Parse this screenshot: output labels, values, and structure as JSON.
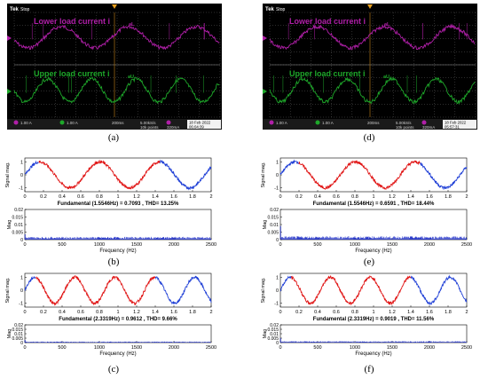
{
  "colors": {
    "scope_bg": "#000000",
    "scope_grid": "#5a5a5a",
    "lower_trace": "#b01fa8",
    "upper_trace": "#1ea82a",
    "status_bar": "#1a1a1a",
    "fft_red": "#e01414",
    "fft_blue": "#1f3fd6",
    "spectrum": "#1f2fc8"
  },
  "scopes": [
    {
      "caption": "(a)",
      "brand": "Tek",
      "state": "Stop",
      "lower_label": "Lower load current i",
      "lower_sub": "aL",
      "upper_label": "Upper load current i",
      "upper_sub": "aU",
      "ch1": "1.00 A",
      "ch2": "1.00 A",
      "timebase": "200ms",
      "sample": "5.00kS/s",
      "points": "10k points",
      "trig_level": "320mA",
      "date": "18 Feb 2022",
      "time": "06:04:39"
    },
    {
      "caption": "(d)",
      "brand": "Tek",
      "state": "Stop",
      "lower_label": "Lower load current i",
      "lower_sub": "aL",
      "upper_label": "Upper load current i",
      "upper_sub": "aU",
      "ch1": "1.00 A",
      "ch2": "1.00 A",
      "timebase": "200ms",
      "sample": "5.00kS/s",
      "points": "10k points",
      "trig_level": "320mA",
      "date": "18 Feb 2022",
      "time": "05:57:31"
    }
  ],
  "chart_data": [
    {
      "type": "line",
      "caption": "(b)",
      "ylabel": "Signal mag.",
      "xticks": [
        "0",
        "0.2",
        "0.4",
        "0.6",
        "0.8",
        "1",
        "1.2",
        "1.4",
        "1.6",
        "1.8",
        "2"
      ],
      "yticks": [
        "-1",
        "0",
        "1"
      ],
      "xlim": [
        0,
        2
      ],
      "ylim": [
        -1.3,
        1.3
      ],
      "series": [
        {
          "frequency_hz": 1.5546,
          "amplitude": 1,
          "highlight_range": [
            0.15,
            1.45
          ]
        }
      ],
      "fundamental_text": "Fundamental (1.5546Hz) = 0.7093 , THD= 13.25%",
      "spectrum": {
        "type": "bar",
        "ylabel": "Mag",
        "xlabel": "Frequency (Hz)",
        "xticks": [
          "0",
          "500",
          "1000",
          "1500",
          "2000",
          "2500"
        ],
        "yticks": [
          "0",
          "0.005",
          "0.01",
          "0.015",
          "0.02"
        ],
        "xlim": [
          0,
          2500
        ],
        "ylim": [
          0,
          0.02
        ],
        "noise_level": 0.0015,
        "fundamental_mag": 0.0035
      }
    },
    {
      "type": "line",
      "caption": "(c)",
      "ylabel": "Signal mag.",
      "xticks": [
        "0",
        "0.2",
        "0.4",
        "0.6",
        "0.8",
        "1",
        "1.2",
        "1.4",
        "1.6",
        "1.8",
        "2"
      ],
      "yticks": [
        "-1",
        "0",
        "1"
      ],
      "xlim": [
        0,
        2
      ],
      "ylim": [
        -1.3,
        1.3
      ],
      "series": [
        {
          "frequency_hz": 2.3319,
          "amplitude": 1,
          "highlight_range": [
            0.12,
            1.4
          ]
        }
      ],
      "fundamental_text": "Fundamental (2.3319Hz) = 0.9612 , THD= 9.66%",
      "spectrum": {
        "type": "bar",
        "ylabel": "Mag",
        "xlabel": "Frequency (Hz)",
        "xticks": [
          "0",
          "500",
          "1000",
          "1500",
          "2000",
          "2500"
        ],
        "yticks": [
          "0",
          "0.005",
          "0.01",
          "0.015",
          "0.02"
        ],
        "xlim": [
          0,
          2500
        ],
        "ylim": [
          0,
          0.02
        ],
        "noise_level": 0.001,
        "fundamental_mag": 0.003
      }
    },
    {
      "type": "line",
      "caption": "(e)",
      "ylabel": "Signal mag.",
      "xticks": [
        "0",
        "0.2",
        "0.4",
        "0.6",
        "0.8",
        "1",
        "1.2",
        "1.4",
        "1.6",
        "1.8",
        "2"
      ],
      "yticks": [
        "-1",
        "0",
        "1"
      ],
      "xlim": [
        0,
        2
      ],
      "ylim": [
        -1.3,
        1.3
      ],
      "series": [
        {
          "frequency_hz": 1.5546,
          "amplitude": 1,
          "highlight_range": [
            0.2,
            1.5
          ]
        }
      ],
      "fundamental_text": "Fundamental (1.5546Hz) = 0.6591 , THD= 18.44%",
      "spectrum": {
        "type": "bar",
        "ylabel": "Mag",
        "xlabel": "Frequency (Hz)",
        "xticks": [
          "0",
          "500",
          "1000",
          "1500",
          "2000",
          "2500"
        ],
        "yticks": [
          "0",
          "0.005",
          "0.01",
          "0.015",
          "0.02"
        ],
        "xlim": [
          0,
          2500
        ],
        "ylim": [
          0,
          0.02
        ],
        "noise_level": 0.0018,
        "fundamental_mag": 0.009
      }
    },
    {
      "type": "line",
      "caption": "(f)",
      "ylabel": "Signal mag.",
      "xticks": [
        "0",
        "0.2",
        "0.4",
        "0.6",
        "0.8",
        "1",
        "1.2",
        "1.4",
        "1.6",
        "1.8",
        "2"
      ],
      "yticks": [
        "-1",
        "0",
        "1"
      ],
      "xlim": [
        0,
        2
      ],
      "ylim": [
        -1.3,
        1.3
      ],
      "series": [
        {
          "frequency_hz": 2.3319,
          "amplitude": 1,
          "highlight_range": [
            0.12,
            1.4
          ]
        }
      ],
      "fundamental_text": "Fundamental (2.3319Hz) = 0.9019 , THD= 11.56%",
      "spectrum": {
        "type": "bar",
        "ylabel": "Mag",
        "xlabel": "Frequency (Hz)",
        "xticks": [
          "0",
          "500",
          "1000",
          "1500",
          "2000",
          "2500"
        ],
        "yticks": [
          "0",
          "0.005",
          "0.01",
          "0.015",
          "0.02"
        ],
        "xlim": [
          0,
          2500
        ],
        "ylim": [
          0,
          0.02
        ],
        "noise_level": 0.0013,
        "fundamental_mag": 0.005
      }
    }
  ]
}
